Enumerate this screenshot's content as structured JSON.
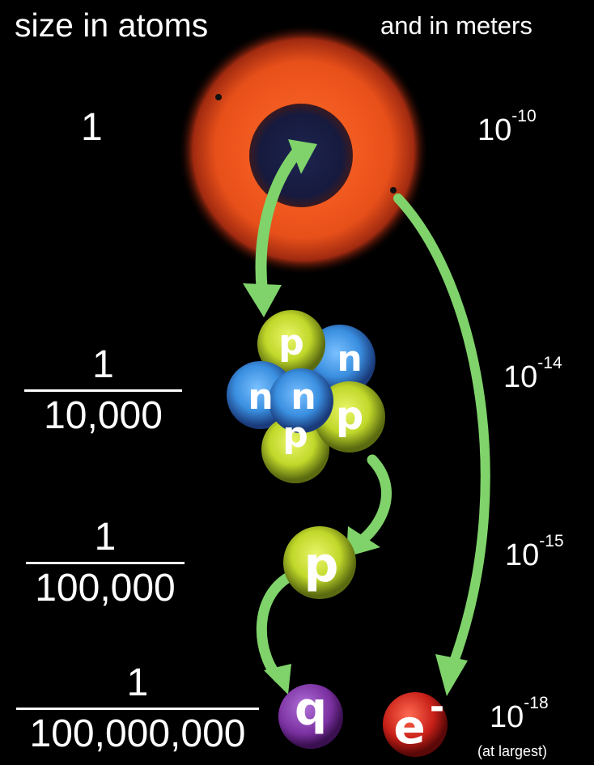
{
  "header": {
    "left": "size in atoms",
    "right": "and in meters"
  },
  "levels": [
    {
      "atoms_whole": "1",
      "meters_base": "10",
      "meters_exp": "-10"
    },
    {
      "atoms_num": "1",
      "atoms_den": "10,000",
      "meters_base": "10",
      "meters_exp": "-14"
    },
    {
      "atoms_num": "1",
      "atoms_den": "100,000",
      "meters_base": "10",
      "meters_exp": "-15"
    },
    {
      "atoms_num": "1",
      "atoms_den": "100,000,000",
      "meters_base": "10",
      "meters_exp": "-18",
      "note": "(at largest)"
    }
  ],
  "particles": {
    "proton": "p",
    "neutron": "n",
    "quark": "q",
    "electron": "e",
    "electron_sign": "-"
  },
  "colors": {
    "electron_cloud": "#e8501a",
    "nucleus_core": "#1a1f4a",
    "arrow": "#7fd36a",
    "proton": "#c8e03a",
    "neutron": "#3a8fe0",
    "quark": "#8a3fb0",
    "electron": "#d02a20"
  }
}
